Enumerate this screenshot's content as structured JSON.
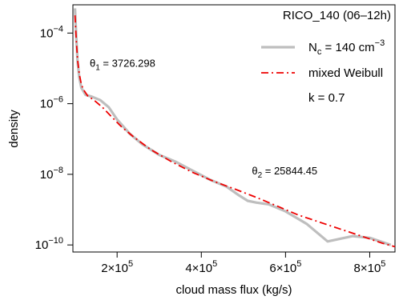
{
  "chart_data": {
    "type": "line",
    "xlabel": "cloud mass flux (kg/s)",
    "ylabel": "density",
    "xlim": [
      95000,
      860000
    ],
    "ylim_log10": [
      -10.2,
      -3.2
    ],
    "y_scale": "log",
    "x_ticks": [
      {
        "value": 200000,
        "mantissa": "2",
        "exp": "5"
      },
      {
        "value": 400000,
        "mantissa": "4",
        "exp": "5"
      },
      {
        "value": 600000,
        "mantissa": "6",
        "exp": "5"
      },
      {
        "value": 800000,
        "mantissa": "8",
        "exp": "5"
      }
    ],
    "y_ticks": [
      {
        "log10": -4,
        "base": "10",
        "exp": "−4"
      },
      {
        "log10": -6,
        "base": "10",
        "exp": "−6"
      },
      {
        "log10": -8,
        "base": "10",
        "exp": "−8"
      },
      {
        "log10": -10,
        "base": "10",
        "exp": "−10"
      }
    ],
    "legend": {
      "position": "top-right",
      "title": "RICO_140 (06–12h)",
      "entries": [
        {
          "series": 0,
          "label_main": "N",
          "label_sub": "c",
          "label_rest": " = 140 cm",
          "label_sup": "−3"
        },
        {
          "series": 1,
          "label": "mixed Weibull"
        }
      ],
      "extra": "k = 0.7"
    },
    "annotations": [
      {
        "sym": "θ",
        "sub": "1",
        "text": " = 3726.298",
        "x": 135000,
        "y_log10": -4.95
      },
      {
        "sym": "θ",
        "sub": "2",
        "text": " = 25844.45",
        "x": 520000,
        "y_log10": -8.0
      }
    ],
    "series": [
      {
        "style": "solid",
        "color": "#bebebe",
        "x": [
          100000,
          103000,
          106000,
          110000,
          115000,
          125000,
          140000,
          160000,
          180000,
          200000,
          230000,
          260000,
          300000,
          340000,
          380000,
          420000,
          460000,
          490000,
          510000,
          530000,
          560000,
          600000,
          650000,
          700000,
          760000,
          800000,
          850000
        ],
        "y_log10": [
          -3.3,
          -4.1,
          -4.8,
          -5.25,
          -5.55,
          -5.75,
          -5.8,
          -5.9,
          -6.1,
          -6.45,
          -6.85,
          -7.15,
          -7.45,
          -7.65,
          -7.9,
          -8.15,
          -8.35,
          -8.6,
          -8.75,
          -8.8,
          -8.85,
          -9.05,
          -9.4,
          -9.9,
          -9.75,
          -9.8,
          -10.0
        ]
      },
      {
        "style": "dashdot",
        "color": "#ee0000",
        "x": [
          100000,
          103000,
          106000,
          110000,
          115000,
          120000,
          130000,
          145000,
          165000,
          185000,
          210000,
          240000,
          280000,
          330000,
          380000,
          430000,
          480000,
          530000,
          580000,
          630000,
          680000,
          730000,
          780000,
          830000,
          860000
        ],
        "y_log10": [
          -3.5,
          -4.2,
          -4.75,
          -5.15,
          -5.45,
          -5.6,
          -5.78,
          -5.9,
          -6.1,
          -6.35,
          -6.65,
          -6.95,
          -7.3,
          -7.65,
          -7.95,
          -8.2,
          -8.42,
          -8.65,
          -8.9,
          -9.15,
          -9.35,
          -9.55,
          -9.75,
          -9.95,
          -10.05
        ]
      }
    ]
  }
}
